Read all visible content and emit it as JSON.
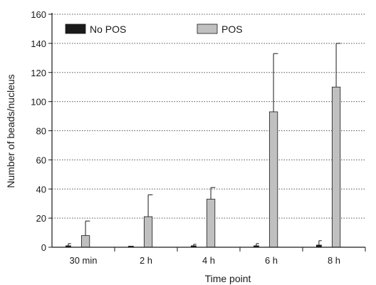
{
  "chart_data": {
    "type": "bar",
    "title": "",
    "xlabel": "Time point",
    "ylabel": "Number of beads/nucleus",
    "categories": [
      "30 min",
      "2 h",
      "4 h",
      "6 h",
      "8 h"
    ],
    "ylim": [
      0,
      160
    ],
    "yticks": [
      0,
      20,
      40,
      60,
      80,
      100,
      120,
      140,
      160
    ],
    "grid": "horizontal dotted",
    "legend_position": "top",
    "series": [
      {
        "name": "No POS",
        "color": "#1a1a1a",
        "values": [
          1,
          0.5,
          1,
          1,
          1.5
        ],
        "errors": [
          1.5,
          0,
          1,
          1.5,
          3
        ]
      },
      {
        "name": "POS",
        "color": "#c0c0c0",
        "values": [
          8,
          21,
          33,
          93,
          110
        ],
        "errors": [
          10,
          15,
          8,
          40,
          30
        ]
      }
    ]
  }
}
